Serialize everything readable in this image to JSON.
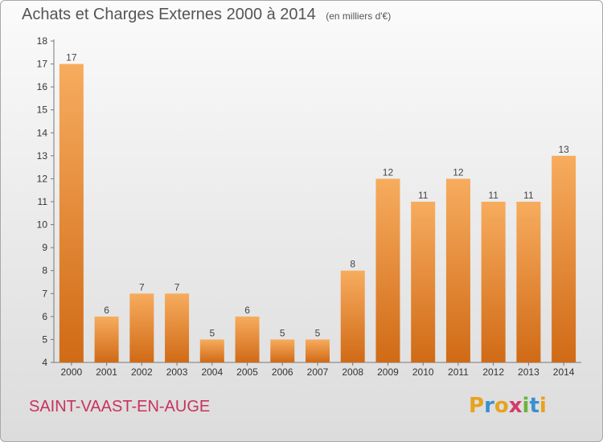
{
  "header": {
    "title": "Achats et Charges Externes 2000 à 2014",
    "unit": "(en milliers d'€)"
  },
  "footer": {
    "commune": "SAINT-VAAST-EN-AUGE",
    "logo_text": "Proxiti",
    "logo_colors": [
      "#e8a21c",
      "#3a8fd0",
      "#e8a21c",
      "#d23b6a",
      "#6cb33f",
      "#3a8fd0",
      "#e8a21c"
    ]
  },
  "chart_data": {
    "type": "bar",
    "categories": [
      "2000",
      "2001",
      "2002",
      "2003",
      "2004",
      "2005",
      "2006",
      "2007",
      "2008",
      "2009",
      "2010",
      "2011",
      "2012",
      "2013",
      "2014"
    ],
    "values": [
      17,
      6,
      7,
      7,
      5,
      6,
      5,
      5,
      8,
      12,
      11,
      12,
      11,
      11,
      13
    ],
    "ylim": [
      4,
      18
    ],
    "yticks": [
      4,
      5,
      6,
      7,
      8,
      9,
      10,
      11,
      12,
      13,
      14,
      15,
      16,
      17,
      18
    ],
    "grid": false,
    "bar_color": "#f08a2c",
    "bar_color_light": "#f7ac5e",
    "bar_color_dark": "#d06a16"
  }
}
